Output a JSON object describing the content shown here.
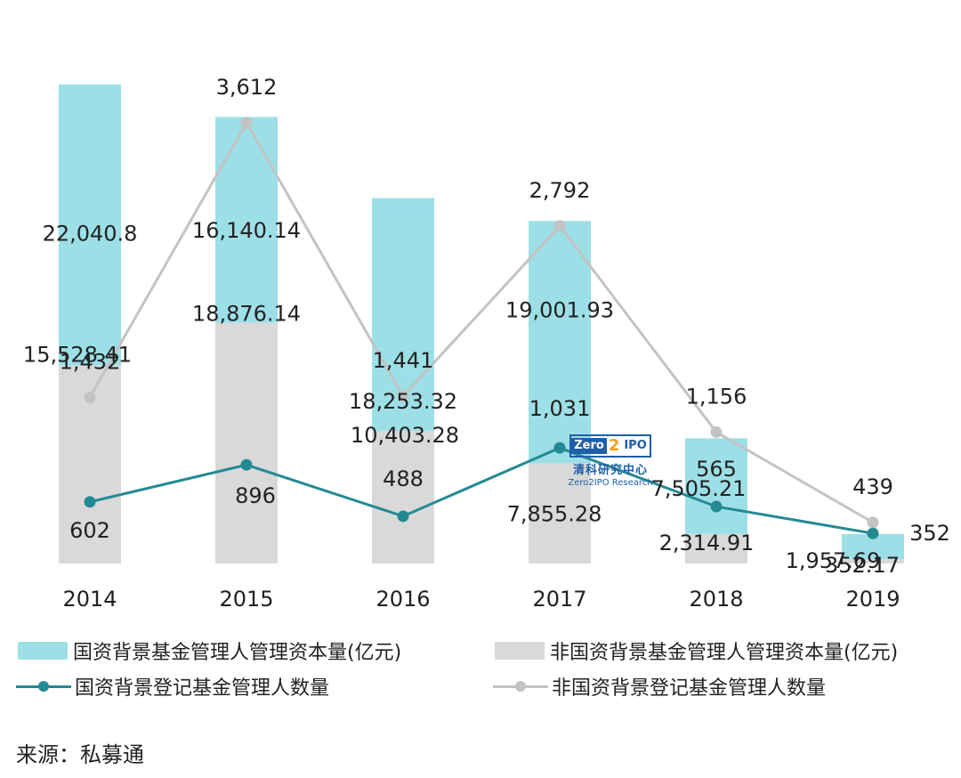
{
  "chart_data": {
    "type": "bar+line",
    "categories": [
      "2014",
      "2015",
      "2016",
      "2017",
      "2018",
      "2019"
    ],
    "ylim_bars": [
      0,
      40000
    ],
    "ylim_lines": [
      0,
      4000
    ],
    "bar_series": [
      {
        "name": "国资背景基金管理人管理资本量(亿元)",
        "color": "#9ddfe6",
        "values": [
          22040.8,
          16140.14,
          18253.32,
          19001.93,
          7505.21,
          1957.69
        ],
        "labels": [
          "22,040.8",
          "16,140.14",
          "18,253.32",
          "19,001.93",
          "7,505.21",
          "1,957.69"
        ]
      },
      {
        "name": "非国资背景基金管理人管理资本量(亿元)",
        "color": "#d9d9d9",
        "values": [
          15528.41,
          18876.14,
          10403.28,
          7855.28,
          2314.91,
          352.17
        ],
        "labels": [
          "15,528.41",
          "18,876.14",
          "10,403.28",
          "7,855.28",
          "2,314.91",
          "352.17"
        ]
      }
    ],
    "line_series": [
      {
        "name": "国资背景登记基金管理人数量",
        "color": "#238a93",
        "values": [
          602,
          896,
          488,
          1031,
          565,
          352
        ],
        "labels": [
          "602",
          "896",
          "488",
          "1,031",
          "565",
          "352"
        ]
      },
      {
        "name": "非国资背景登记基金管理人数量",
        "color": "#c3c3c3",
        "values": [
          1432,
          3612,
          1441,
          2792,
          1156,
          439
        ],
        "labels": [
          "1,432",
          "3,612",
          "1,441",
          "2,792",
          "1,156",
          "439"
        ]
      }
    ],
    "legend_position": "bottom"
  },
  "watermark": {
    "logo_left": "Zero",
    "logo_mid": "2",
    "logo_right": "IPO",
    "name_cn": "清科研究中心",
    "name_en": "Zero2IPO Research"
  },
  "source": "来源：私募通"
}
